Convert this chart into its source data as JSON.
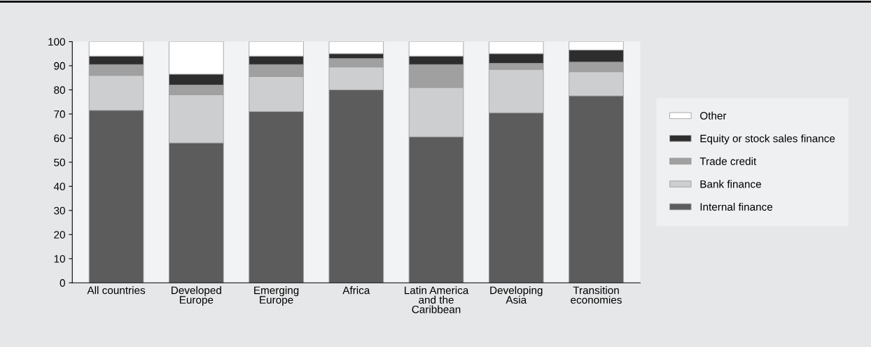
{
  "chart_data": {
    "type": "bar",
    "stacked": true,
    "categories": [
      "All countries",
      "Developed\nEurope",
      "Emerging\nEurope",
      "Africa",
      "Latin America\nand the\nCaribbean",
      "Developing\nAsia",
      "Transition\neconomies"
    ],
    "series": [
      {
        "name": "Internal finance",
        "color": "#5c5c5c",
        "values": [
          71.5,
          58,
          71,
          80,
          60.5,
          70.5,
          77.5
        ]
      },
      {
        "name": "Bank finance",
        "color": "#cdcecf",
        "values": [
          14.5,
          20,
          14.5,
          9.5,
          20.5,
          18,
          10
        ]
      },
      {
        "name": "Trade credit",
        "color": "#a0a0a0",
        "values": [
          4.5,
          4,
          5,
          3.5,
          9.5,
          2.5,
          4
        ]
      },
      {
        "name": "Equity or stock sales finance",
        "color": "#2e2d2e",
        "values": [
          3.5,
          4.5,
          3.5,
          2,
          3.5,
          4,
          5
        ]
      },
      {
        "name": "Other",
        "color": "#ffffff",
        "values": [
          6,
          13.5,
          6,
          5,
          6,
          5,
          3.5
        ]
      }
    ],
    "ylim": [
      0,
      100
    ],
    "yticks": [
      0,
      10,
      20,
      30,
      40,
      50,
      60,
      70,
      80,
      90,
      100
    ],
    "grid": false,
    "legend": "right"
  }
}
